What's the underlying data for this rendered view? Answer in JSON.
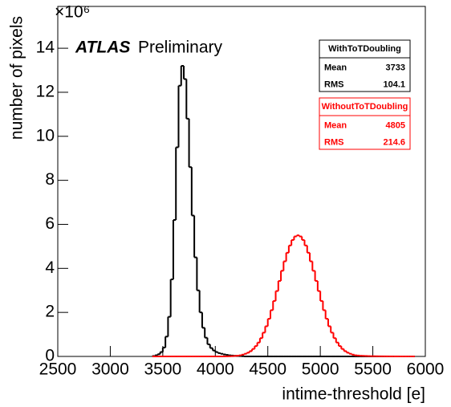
{
  "chart_data": {
    "type": "histogram",
    "annotations": [
      "ATLAS",
      "Preliminary"
    ],
    "xlabel": "intime-threshold [e]",
    "ylabel": "number of pixels",
    "y_multiplier": "×10⁶",
    "xlim": [
      2500,
      6000
    ],
    "xticks": [
      2500,
      3000,
      3500,
      4000,
      4500,
      5000,
      5500,
      6000
    ],
    "ylim": [
      0,
      15.9
    ],
    "yticks": [
      0,
      2,
      4,
      6,
      8,
      10,
      12,
      14
    ],
    "bins": [
      3400,
      3425,
      3450,
      3475,
      3500,
      3525,
      3550,
      3575,
      3600,
      3625,
      3650,
      3675,
      3700,
      3725,
      3750,
      3775,
      3800,
      3825,
      3850,
      3875,
      3900,
      3925,
      3950,
      3975,
      4000,
      4025,
      4050,
      4075,
      4100,
      4125,
      4150,
      4175,
      4200,
      4225,
      4250,
      4275,
      4300,
      4325,
      4350,
      4375,
      4400,
      4425,
      4450,
      4475,
      4500,
      4525,
      4550,
      4575,
      4600,
      4625,
      4650,
      4675,
      4700,
      4725,
      4750,
      4775,
      4800,
      4825,
      4850,
      4875,
      4900,
      4925,
      4950,
      4975,
      5000,
      5025,
      5050,
      5075,
      5100,
      5125,
      5150,
      5175,
      5200,
      5225,
      5250,
      5275,
      5300,
      5325,
      5350,
      5375,
      5400,
      5425,
      5450,
      5475,
      5500,
      5525,
      5550,
      5575,
      5600,
      5625,
      5650,
      5675,
      5700,
      5725,
      5750,
      5775,
      5800,
      5825,
      5850,
      5875,
      5900
    ],
    "series": [
      {
        "name": "WithToTDoubling",
        "color": "#000000",
        "stats": [
          {
            "label": "Mean",
            "value": 3733
          },
          {
            "label": "RMS",
            "value": 104.1
          }
        ],
        "values": [
          0.02,
          0.05,
          0.1,
          0.2,
          0.4,
          0.9,
          1.8,
          3.5,
          6.2,
          9.5,
          12.3,
          13.2,
          12.6,
          10.8,
          8.6,
          6.4,
          4.5,
          3.0,
          2.0,
          1.3,
          0.85,
          0.55,
          0.38,
          0.27,
          0.2,
          0.15,
          0.12,
          0.09,
          0.07,
          0.05,
          0.04,
          0.03,
          0.02,
          0.015,
          0.01,
          0,
          0,
          0,
          0,
          0,
          0,
          0,
          0,
          0,
          0,
          0,
          0,
          0,
          0,
          0,
          0,
          0,
          0,
          0,
          0,
          0,
          0,
          0,
          0,
          0,
          0,
          0,
          0,
          0,
          0,
          0,
          0,
          0,
          0,
          0,
          0,
          0,
          0,
          0,
          0,
          0,
          0,
          0,
          0,
          0,
          0,
          0,
          0,
          0,
          0,
          0,
          0,
          0,
          0,
          0,
          0,
          0,
          0,
          0,
          0,
          0,
          0,
          0,
          0,
          0
        ]
      },
      {
        "name": "WithoutToTDoubling",
        "color": "#ff0000",
        "stats": [
          {
            "label": "Mean",
            "value": 4805
          },
          {
            "label": "RMS",
            "value": 214.6
          }
        ],
        "values": [
          0,
          0,
          0,
          0,
          0,
          0,
          0,
          0,
          0,
          0,
          0,
          0,
          0,
          0,
          0,
          0,
          0,
          0,
          0,
          0,
          0,
          0,
          0,
          0,
          0,
          0,
          0,
          0.003,
          0.005,
          0.008,
          0.013,
          0.021,
          0.033,
          0.05,
          0.08,
          0.12,
          0.17,
          0.24,
          0.34,
          0.47,
          0.63,
          0.83,
          1.08,
          1.37,
          1.71,
          2.1,
          2.52,
          2.97,
          3.43,
          3.89,
          4.32,
          4.71,
          5.04,
          5.29,
          5.45,
          5.5,
          5.45,
          5.29,
          5.04,
          4.71,
          4.32,
          3.89,
          3.43,
          2.97,
          2.52,
          2.1,
          1.71,
          1.37,
          1.08,
          0.83,
          0.63,
          0.47,
          0.34,
          0.24,
          0.17,
          0.12,
          0.08,
          0.05,
          0.04,
          0.03,
          0.025,
          0.02,
          0.015,
          0.012,
          0.01,
          0.008,
          0.006,
          0.005,
          0.004,
          0.003,
          0.002,
          0.002,
          0.001,
          0.001,
          0,
          0,
          0,
          0,
          0,
          0
        ]
      }
    ]
  }
}
